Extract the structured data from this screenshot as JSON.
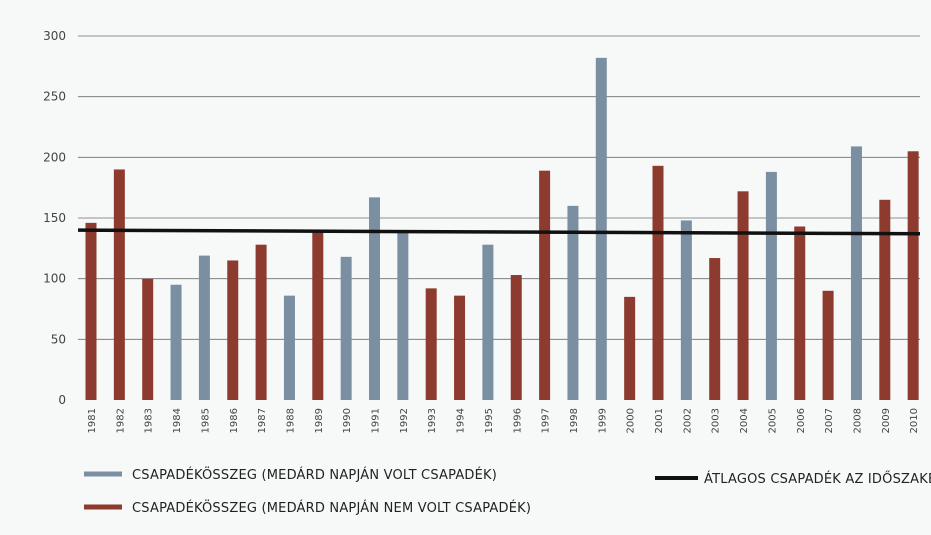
{
  "chart_data": {
    "type": "bar",
    "categories": [
      "1981",
      "1982",
      "1983",
      "1984",
      "1985",
      "1986",
      "1987",
      "1988",
      "1989",
      "1990",
      "1991",
      "1992",
      "1993",
      "1994",
      "1995",
      "1996",
      "1997",
      "1998",
      "1999",
      "2000",
      "2001",
      "2002",
      "2003",
      "2004",
      "2005",
      "2006",
      "2007",
      "2008",
      "2009",
      "2010"
    ],
    "values": [
      146,
      190,
      100,
      95,
      119,
      115,
      128,
      86,
      140,
      118,
      167,
      139,
      92,
      86,
      128,
      103,
      189,
      160,
      282,
      85,
      193,
      148,
      117,
      172,
      188,
      143,
      90,
      209,
      165,
      205
    ],
    "rain_on_medard": [
      false,
      false,
      false,
      true,
      true,
      false,
      false,
      true,
      false,
      true,
      true,
      true,
      false,
      false,
      true,
      false,
      false,
      true,
      true,
      false,
      false,
      true,
      false,
      false,
      true,
      false,
      false,
      true,
      false,
      false
    ],
    "average_line": {
      "start": 140,
      "end": 137
    },
    "ylim": [
      0,
      300
    ],
    "yticks": [
      0,
      50,
      100,
      150,
      200,
      250,
      300
    ],
    "colors": {
      "rain_day": "#7b8fa3",
      "no_rain_day": "#8e3b2f",
      "average": "#111111",
      "grid": "#333333"
    },
    "legend": [
      {
        "key": "rain",
        "label": "CSAPADÉKÖSSZEG (MEDÁRD NAPJÁN VOLT CSAPADÉK)"
      },
      {
        "key": "norain",
        "label": "CSAPADÉKÖSSZEG (MEDÁRD NAPJÁN NEM VOLT CSAPADÉK)"
      },
      {
        "key": "avg",
        "label": "ÁTLAGOS CSAPADÉK AZ IDŐSZAKBAN"
      }
    ]
  }
}
